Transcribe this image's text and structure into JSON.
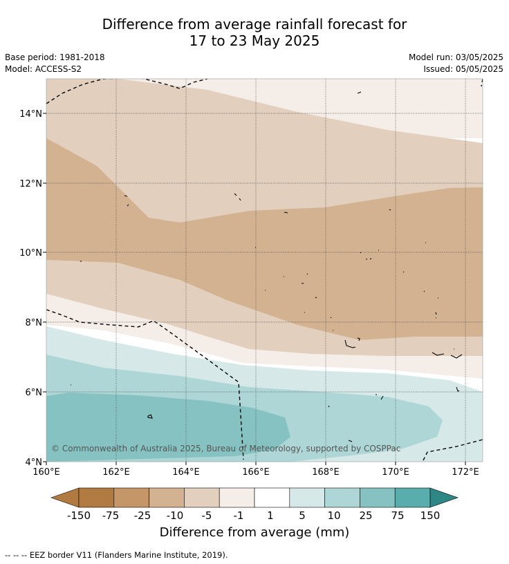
{
  "title": {
    "line1": "Difference from average rainfall forecast for",
    "line2": "17 to 23 May 2025"
  },
  "meta": {
    "base_period": "Base period: 1981-2018",
    "model": "Model: ACCESS-S2",
    "model_run": "Model run: 03/05/2025",
    "issued": "Issued: 05/05/2025"
  },
  "map": {
    "lat_labels": [
      "14°N",
      "12°N",
      "10°N",
      "8°N",
      "6°N",
      "4°N"
    ],
    "lon_labels": [
      "160°E",
      "162°E",
      "164°E",
      "166°E",
      "168°E",
      "170°E",
      "172°E"
    ],
    "copyright": "© Commonwealth of Australia 2025, Bureau of Meteorology, supported by COSPPac"
  },
  "colorbar": {
    "tick_labels": [
      "-150",
      "-75",
      "-25",
      "-10",
      "-5",
      "-1",
      "1",
      "5",
      "10",
      "25",
      "75",
      "150"
    ],
    "colors": [
      "#b07a40",
      "#c49668",
      "#d3b291",
      "#e3cfbd",
      "#f5ede8",
      "#ffffff",
      "#d6e9e8",
      "#afd6d6",
      "#85c2c1",
      "#5aadad",
      "#349a98",
      "#2e8785"
    ],
    "title": "Difference from average (mm)"
  },
  "legend": {
    "eez": "--  --  -- EEZ border V11 (Flanders Marine Institute, 2019)."
  }
}
